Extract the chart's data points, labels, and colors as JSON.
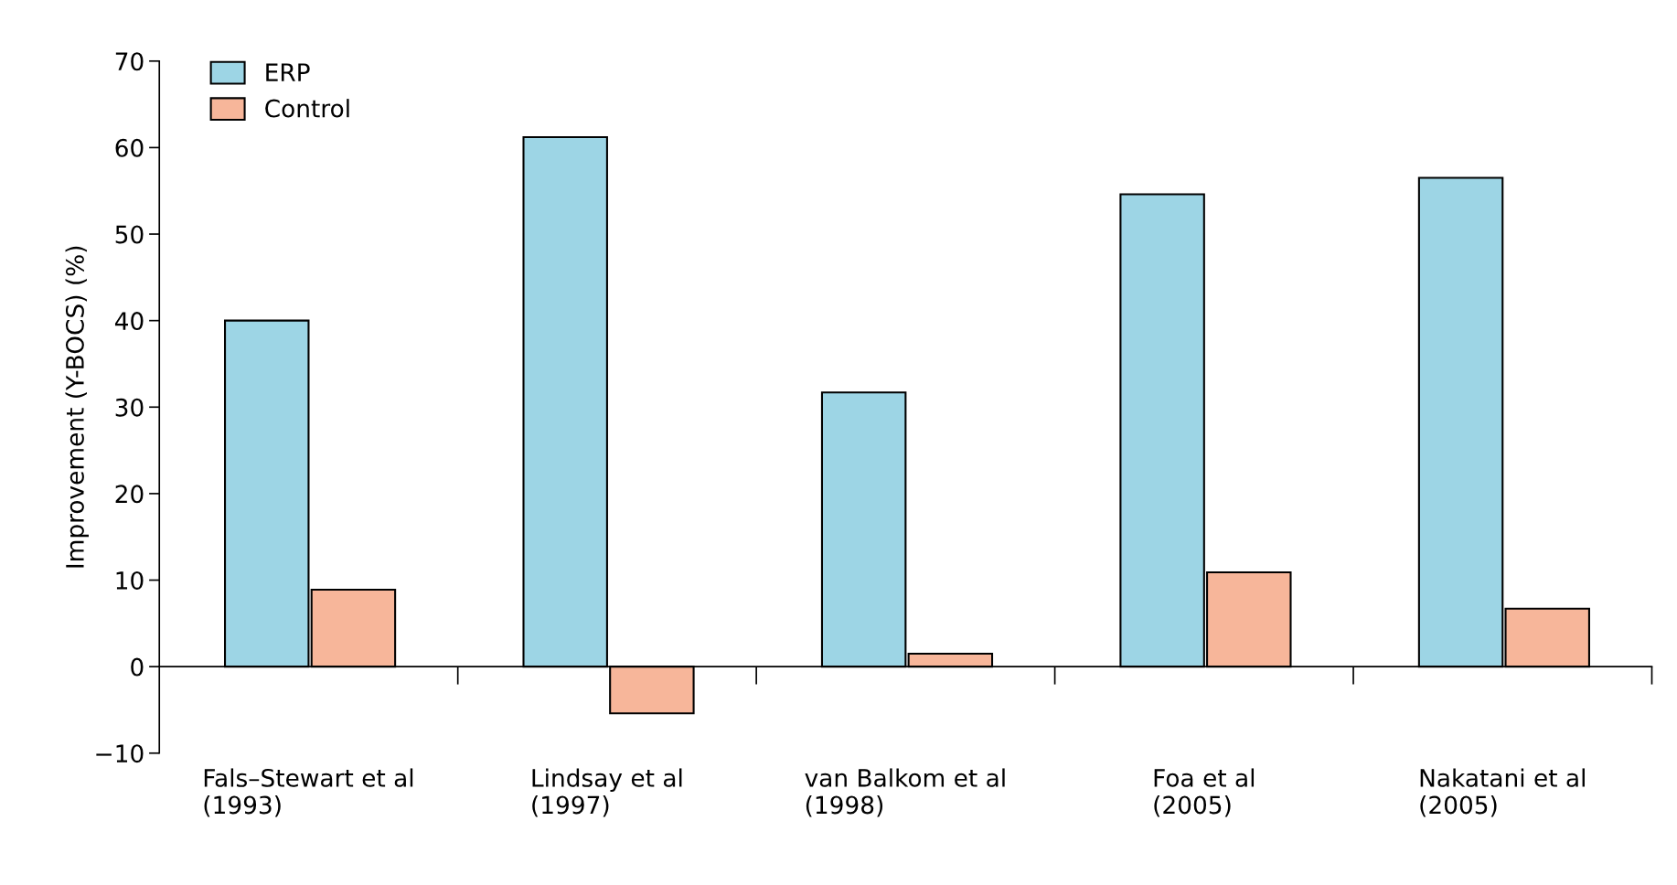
{
  "chart_data": {
    "type": "bar",
    "ylabel": "Improvement (Y-BOCS) (%)",
    "categories": [
      "Fals–Stewart et al\n(1993)",
      "Lindsay et al\n(1997)",
      "van Balkom et al\n(1998)",
      "Foa et al\n(2005)",
      "Nakatani et al\n(2005)"
    ],
    "series": [
      {
        "name": "ERP",
        "color": "#9dd5e5",
        "values": [
          40,
          61.2,
          31.7,
          54.6,
          56.5
        ]
      },
      {
        "name": "Control",
        "color": "#f7b69a",
        "values": [
          8.9,
          -5.4,
          1.5,
          10.9,
          6.7
        ]
      }
    ],
    "ylim": [
      -10,
      70
    ],
    "yticks": [
      {
        "value": -10,
        "label": "−10"
      },
      0,
      10,
      20,
      30,
      40,
      50,
      60,
      70
    ],
    "legend": "top left"
  }
}
